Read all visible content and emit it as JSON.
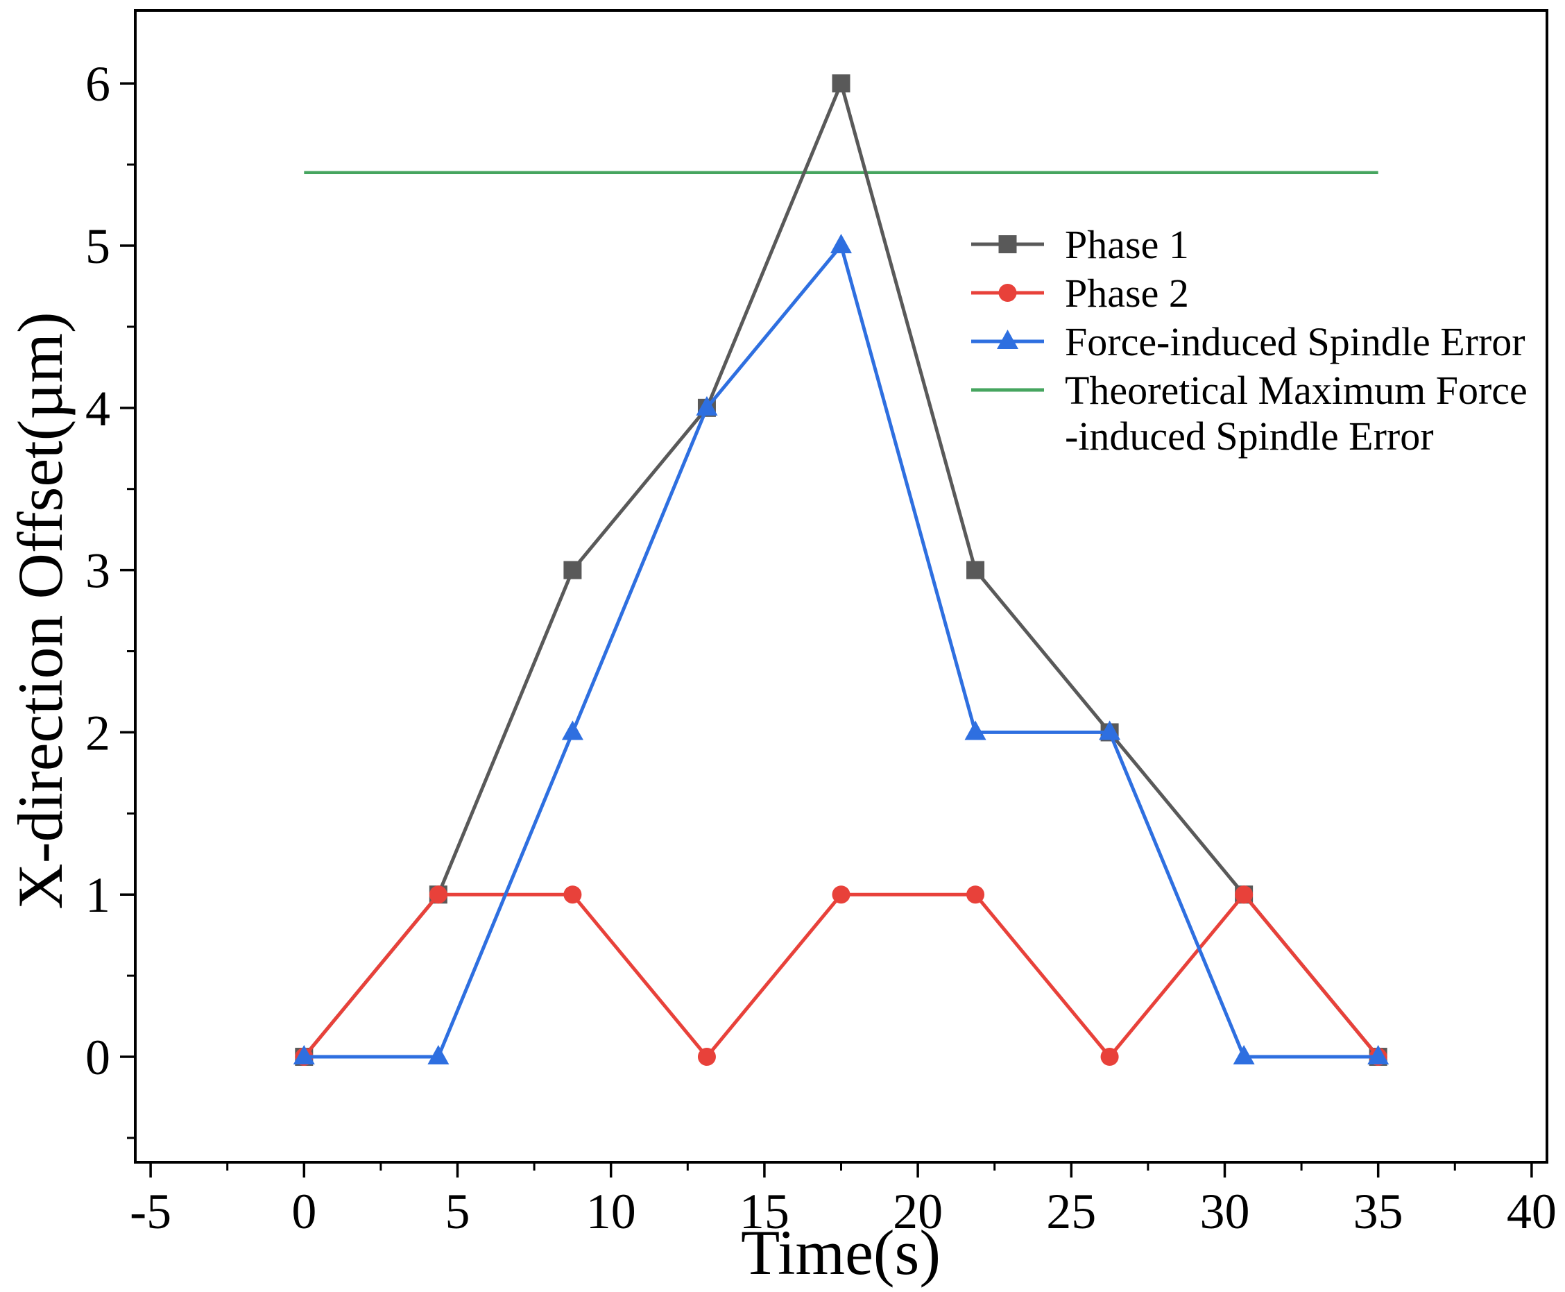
{
  "figure": {
    "background": "#ffffff",
    "frame_color": "#000000"
  },
  "axes": {
    "xlabel": "Time(s)",
    "ylabel": "X-direction Offset(µm)"
  },
  "chart_data": {
    "type": "line",
    "title": "",
    "xlabel": "Time(s)",
    "ylabel": "X-direction Offset(µm)",
    "xlim": [
      -5.5,
      40.5
    ],
    "ylim": [
      -0.65,
      6.45
    ],
    "x_ticks": [
      -5,
      0,
      5,
      10,
      15,
      20,
      25,
      30,
      35,
      40
    ],
    "y_ticks": [
      0,
      1,
      2,
      3,
      4,
      5,
      6
    ],
    "x_minor_step": 2.5,
    "y_minor_step": 0.5,
    "grid": false,
    "x": [
      0,
      4.375,
      8.75,
      13.125,
      17.5,
      21.875,
      26.25,
      30.625,
      35
    ],
    "series": [
      {
        "name": "Phase 1",
        "marker": "square",
        "color": "#595959",
        "values": [
          0,
          1,
          3,
          4,
          6,
          3,
          2,
          1,
          0
        ]
      },
      {
        "name": "Phase 2",
        "marker": "circle",
        "color": "#e8413a",
        "values": [
          0,
          1,
          1,
          0,
          1,
          1,
          0,
          1,
          0
        ]
      },
      {
        "name": "Force-induced Spindle Error",
        "marker": "triangle",
        "color": "#2e6fe0",
        "values": [
          0,
          0,
          2,
          4,
          5,
          2,
          2,
          0,
          0
        ]
      }
    ],
    "reference_line": {
      "name": "Theoretical Maximum Force-induced Spindle Error",
      "color": "#46a55f",
      "y": 5.45,
      "x_start": 0,
      "x_end": 35
    },
    "legend": {
      "position": "upper-right-inside",
      "entries": [
        {
          "label": "Phase 1",
          "marker": "square",
          "color": "#595959"
        },
        {
          "label": "Phase 2",
          "marker": "circle",
          "color": "#e8413a"
        },
        {
          "label": "Force-induced Spindle Error",
          "marker": "triangle",
          "color": "#2e6fe0"
        },
        {
          "label": "Theoretical Maximum Force",
          "label2": "-induced Spindle Error",
          "marker": "line",
          "color": "#46a55f"
        }
      ]
    }
  }
}
